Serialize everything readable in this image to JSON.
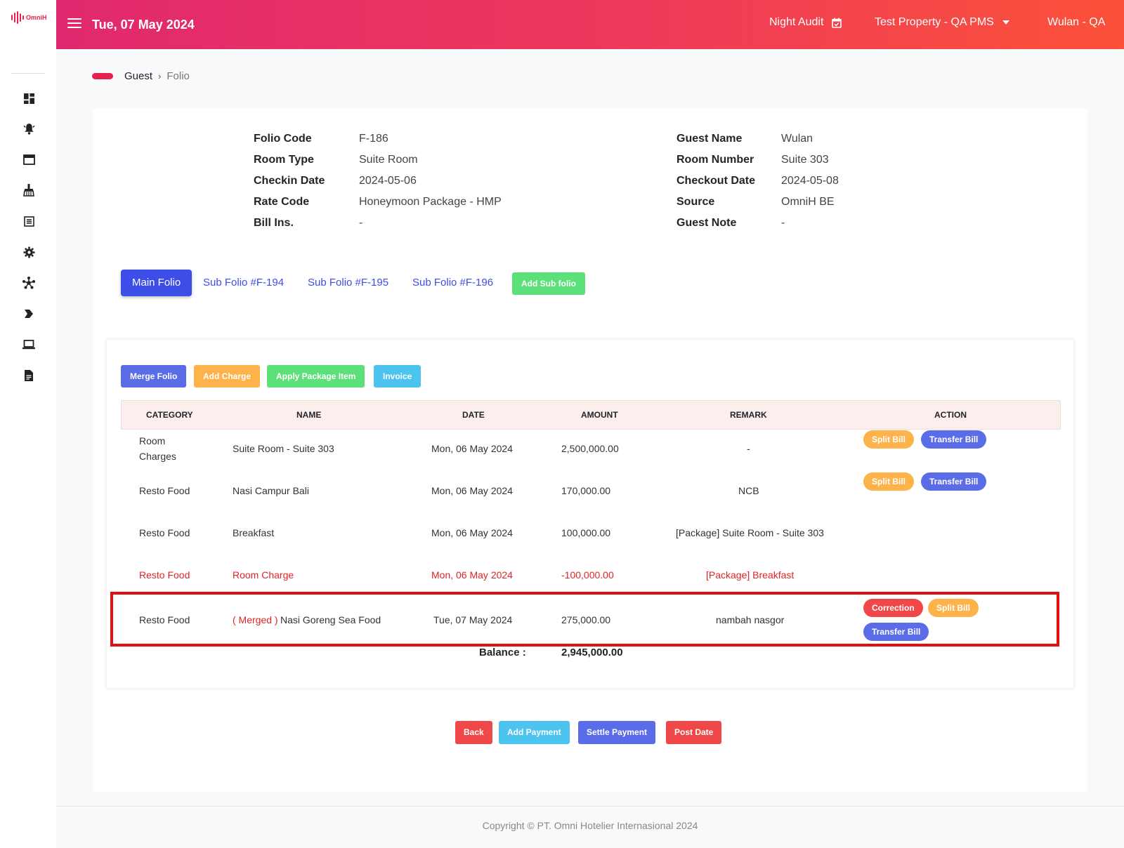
{
  "brand": {
    "logo_text": "OmniH"
  },
  "header": {
    "date": "Tue, 07 May 2024",
    "night_audit": "Night Audit",
    "property": "Test Property - QA PMS",
    "user": "Wulan - QA"
  },
  "sidebar": {
    "icons": [
      "dashboard-icon",
      "bell-icon",
      "window-icon",
      "cleaning-icon",
      "list-icon",
      "gear-icon",
      "network-icon",
      "tag-icon",
      "laptop-icon",
      "report-icon"
    ]
  },
  "breadcrumb": {
    "parent": "Guest",
    "separator": "›",
    "current": "Folio"
  },
  "folio_info": {
    "left": [
      {
        "label": "Folio Code",
        "value": "F-186"
      },
      {
        "label": "Room Type",
        "value": "Suite Room"
      },
      {
        "label": "Checkin Date",
        "value": "2024-05-06"
      },
      {
        "label": "Rate Code",
        "value": "Honeymoon Package - HMP"
      },
      {
        "label": "Bill Ins.",
        "value": "-"
      }
    ],
    "right": [
      {
        "label": "Guest Name",
        "value": "Wulan"
      },
      {
        "label": "Room Number",
        "value": "Suite 303"
      },
      {
        "label": "Checkout Date",
        "value": "2024-05-08"
      },
      {
        "label": "Source",
        "value": "OmniH BE"
      },
      {
        "label": "Guest Note",
        "value": "-"
      }
    ]
  },
  "tabs": {
    "main": "Main Folio",
    "subs": [
      "Sub Folio #F-194",
      "Sub Folio #F-195",
      "Sub Folio #F-196"
    ],
    "add_sub": "Add Sub folio"
  },
  "actions": {
    "merge": "Merge Folio",
    "add_charge": "Add Charge",
    "apply_package": "Apply Package Item",
    "invoice": "Invoice"
  },
  "table": {
    "headers": [
      "CATEGORY",
      "NAME",
      "DATE",
      "AMOUNT",
      "REMARK",
      "ACTION"
    ],
    "rows": [
      {
        "category_1": "Room",
        "category_2": "Charges",
        "name_prefix": "",
        "name": "Suite Room - Suite 303",
        "date": "Mon, 06 May 2024",
        "amount": "2,500,000.00",
        "remark": "-",
        "buttons": [
          "Split Bill",
          "Transfer Bill"
        ]
      },
      {
        "category_1": "Resto Food",
        "category_2": "",
        "name_prefix": "",
        "name": "Nasi Campur Bali",
        "date": "Mon, 06 May 2024",
        "amount": "170,000.00",
        "remark": "NCB",
        "buttons": [
          "Split Bill",
          "Transfer Bill"
        ]
      },
      {
        "category_1": "Resto Food",
        "category_2": "",
        "name_prefix": "",
        "name": "Breakfast",
        "date": "Mon, 06 May 2024",
        "amount": "100,000.00",
        "remark": "[Package] Suite Room - Suite 303",
        "buttons": []
      },
      {
        "category_1": "Resto Food",
        "category_2": "",
        "name_prefix": "",
        "name": "Room Charge",
        "date": "Mon, 06 May 2024",
        "amount": "-100,000.00",
        "remark": "[Package] Breakfast",
        "buttons": []
      },
      {
        "category_1": "Resto Food",
        "category_2": "",
        "name_prefix": "( Merged )",
        "name": "Nasi Goreng Sea Food",
        "date": "Tue, 07 May 2024",
        "amount": "275,000.00",
        "remark": "nambah nasgor",
        "buttons": [
          "Correction",
          "Split Bill",
          "Transfer Bill"
        ]
      }
    ],
    "balance_label": "Balance :",
    "balance_value": "2,945,000.00"
  },
  "bottom_actions": {
    "back": "Back",
    "add_payment": "Add Payment",
    "settle_payment": "Settle Payment",
    "post_date": "Post Date"
  },
  "footer": {
    "copyright": "Copyright © PT. Omni Hotelier Internasional 2024"
  },
  "colors": {
    "header_start": "#e0286e",
    "header_end": "#fb5138",
    "primary": "#3d4ee8",
    "green": "#5ce07a",
    "orange": "#fdb24a",
    "purple": "#5b6ce8",
    "cyan": "#4dc3f0",
    "red": "#f04848",
    "negative_text": "#e02424",
    "highlight": "#e01010"
  }
}
